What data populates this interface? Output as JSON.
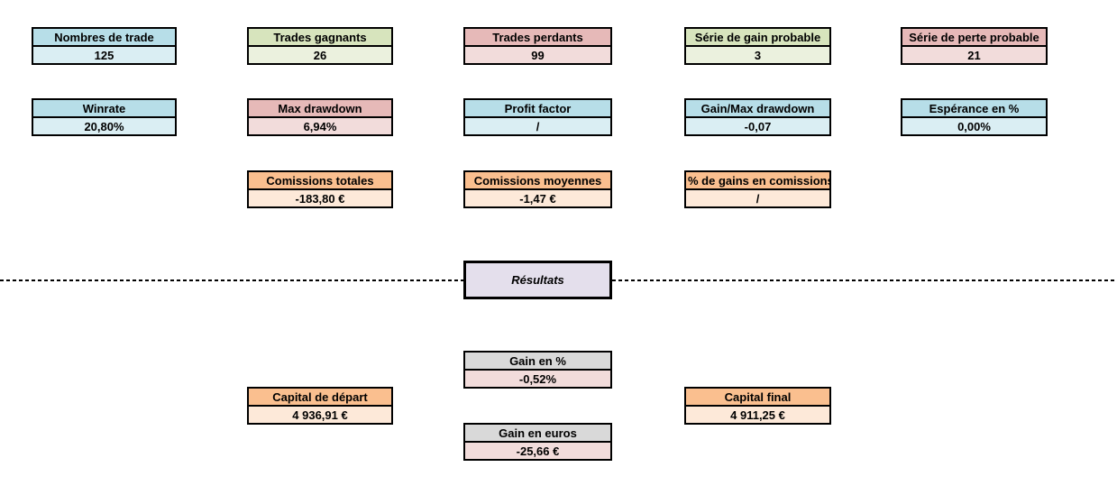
{
  "results_title": "Résultats",
  "colors": {
    "blue_header": "#B7DEE8",
    "blue_value": "#DAEEF3",
    "green_header": "#D7E4BD",
    "green_value": "#EBF1DE",
    "red_header": "#E6B9B8",
    "red_value": "#F2DCDB",
    "orange_header": "#FABF8F",
    "orange_value": "#FDE9D9",
    "gray_header": "#D9D9D9",
    "gray_red_value": "#F2DCDB",
    "results_fill": "#E4DFEC",
    "border": "#000000",
    "background": "#FFFFFF"
  },
  "boxes": [
    {
      "label": "Nombres de trade",
      "value": "125"
    },
    {
      "label": "Trades gagnants",
      "value": "26"
    },
    {
      "label": "Trades perdants",
      "value": "99"
    },
    {
      "label": "Série de gain probable",
      "value": "3"
    },
    {
      "label": "Série de perte probable",
      "value": "21"
    },
    {
      "label": "Winrate",
      "value": "20,80%"
    },
    {
      "label": "Max drawdown",
      "value": "6,94%"
    },
    {
      "label": "Profit factor",
      "value": "/"
    },
    {
      "label": "Gain/Max drawdown",
      "value": "-0,07"
    },
    {
      "label": "Espérance en %",
      "value": "0,00%"
    },
    {
      "label": "Comissions totales",
      "value": "-183,80 €"
    },
    {
      "label": "Comissions moyennes",
      "value": "-1,47 €"
    },
    {
      "label": "% de gains en comissions",
      "value": "/"
    },
    {
      "label": "Gain en %",
      "value": "-0,52%"
    },
    {
      "label": "Gain en euros",
      "value": "-25,66 €"
    },
    {
      "label": "Capital de départ",
      "value": "4 936,91 €"
    },
    {
      "label": "Capital final",
      "value": "4 911,25 €"
    }
  ]
}
